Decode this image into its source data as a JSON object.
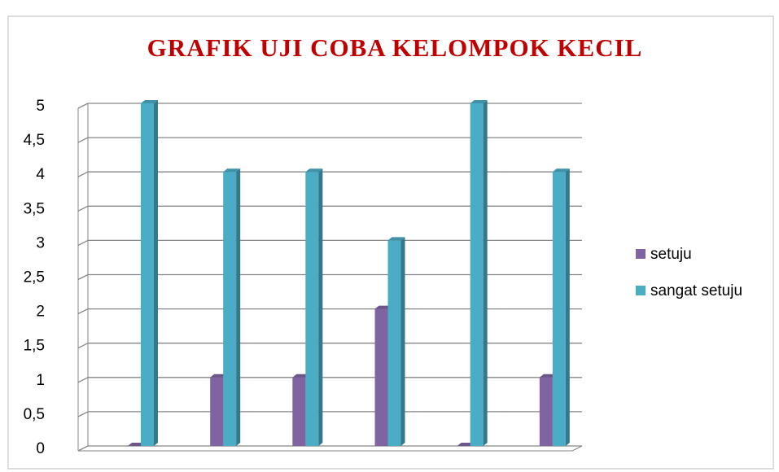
{
  "chart_data": {
    "type": "bar",
    "title": "GRAFIK UJI COBA KELOMPOK KECIL",
    "categories": [
      null,
      null,
      null,
      null,
      null,
      null
    ],
    "series": [
      {
        "name": "setuju",
        "color": "#8064a2",
        "values": [
          0,
          1,
          1,
          2,
          0,
          1
        ]
      },
      {
        "name": "sangat setuju",
        "color": "#4bacc6",
        "values": [
          5,
          4,
          4,
          3,
          5,
          4
        ]
      }
    ],
    "ylim": [
      0,
      5
    ],
    "yticks": [
      0,
      {
        "value": 0.5,
        "label": "0,5"
      },
      1,
      {
        "value": 1.5,
        "label": "1,5"
      },
      2,
      {
        "value": 2.5,
        "label": "2,5"
      },
      3,
      {
        "value": 3.5,
        "label": "3,5"
      },
      4,
      {
        "value": 4.5,
        "label": "4,5"
      },
      5
    ],
    "grid": true,
    "legend": "right"
  }
}
